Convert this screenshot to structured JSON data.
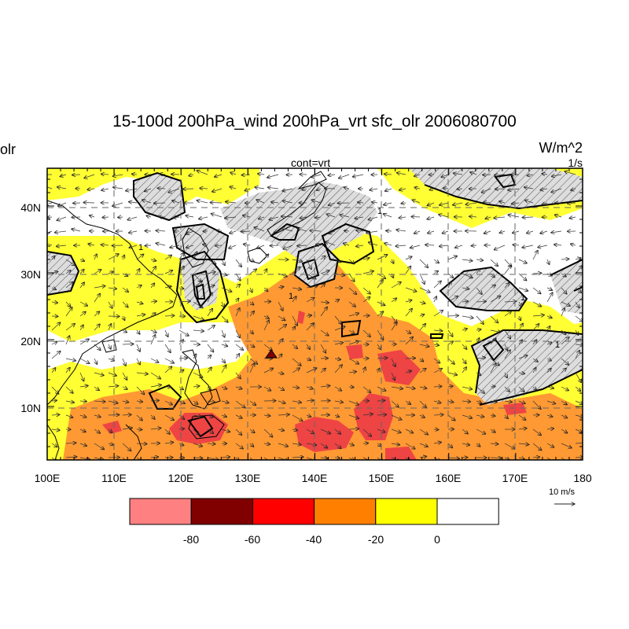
{
  "title": "15-100d 200hPa_wind 200hPa_vrt sfc_olr 2006080700",
  "left_label": "olr",
  "right_label": "W/m^2",
  "center_sublabel": "cont=vrt",
  "vrt_units": "1/s",
  "map": {
    "lon_range": [
      100,
      180
    ],
    "lat_range": [
      2,
      46
    ],
    "lon_ticks": [
      "100E",
      "110E",
      "120E",
      "130E",
      "140E",
      "150E",
      "160E",
      "170E",
      "180"
    ],
    "lat_ticks": [
      "10N",
      "20N",
      "30N",
      "40N"
    ],
    "contour_label": "1"
  },
  "reference_vector": {
    "label": "10 m/s",
    "magnitude": 10
  },
  "colorbar": {
    "colors": [
      "#ff8080",
      "#800000",
      "#ff0000",
      "#ff8000",
      "#ffff00",
      "#ffffff"
    ],
    "labels": [
      "-80",
      "-60",
      "-40",
      "-20",
      "0"
    ]
  },
  "colors": {
    "white": "#ffffff",
    "yellow": "#ffff33",
    "orange": "#ff9933",
    "red": "#ee4444",
    "darkred": "#800000"
  }
}
